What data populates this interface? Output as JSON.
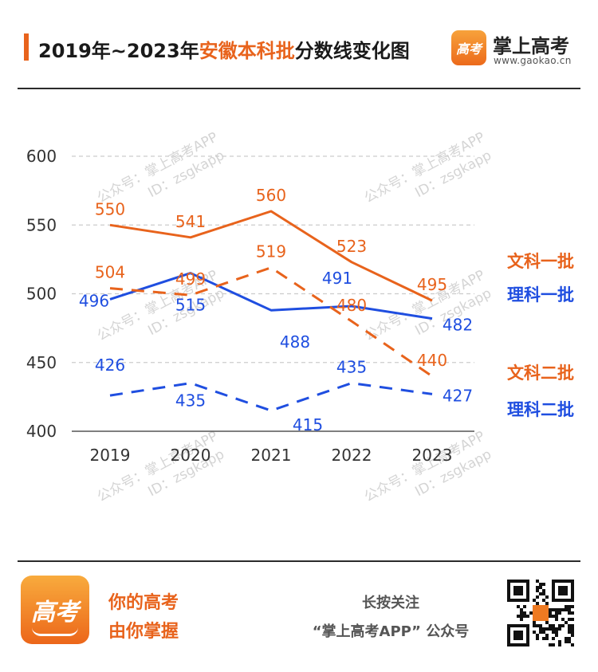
{
  "header": {
    "title_prefix": "2019年~2023年",
    "title_highlight": "安徽本科批",
    "title_suffix": "分数线变化图",
    "brand_logo_text": "高考",
    "brand_name": "掌上高考",
    "brand_url": "www.gaokao.cn"
  },
  "watermark": {
    "line1": "公众号：掌上高考APP",
    "line2": "ID：zsgkapp"
  },
  "colors": {
    "orange": "#e8631c",
    "blue": "#1f4ee0",
    "grid": "#cccccc",
    "axis_text": "#333333"
  },
  "chart_data": {
    "type": "line",
    "title": "2019年~2023年安徽本科批分数线变化图",
    "categories": [
      "2019",
      "2020",
      "2021",
      "2022",
      "2023"
    ],
    "ylim": [
      400,
      600
    ],
    "yticks": [
      400,
      450,
      500,
      550,
      600
    ],
    "grid": true,
    "legend_position": "right",
    "series": [
      {
        "name": "文科一批",
        "values": [
          550,
          541,
          560,
          523,
          495
        ],
        "color": "#e8631c",
        "dashed": false
      },
      {
        "name": "理科一批",
        "values": [
          496,
          515,
          488,
          491,
          482
        ],
        "color": "#1f4ee0",
        "dashed": false
      },
      {
        "name": "文科二批",
        "values": [
          504,
          499,
          519,
          480,
          440
        ],
        "color": "#e8631c",
        "dashed": true
      },
      {
        "name": "理科二批",
        "values": [
          426,
          435,
          415,
          435,
          427
        ],
        "color": "#1f4ee0",
        "dashed": true
      }
    ]
  },
  "footer": {
    "logo_text": "高考",
    "slogan_line1": "你的高考",
    "slogan_line2": "由你掌握",
    "follow_line1": "长按关注",
    "follow_line2": "“掌上高考APP” 公众号"
  }
}
